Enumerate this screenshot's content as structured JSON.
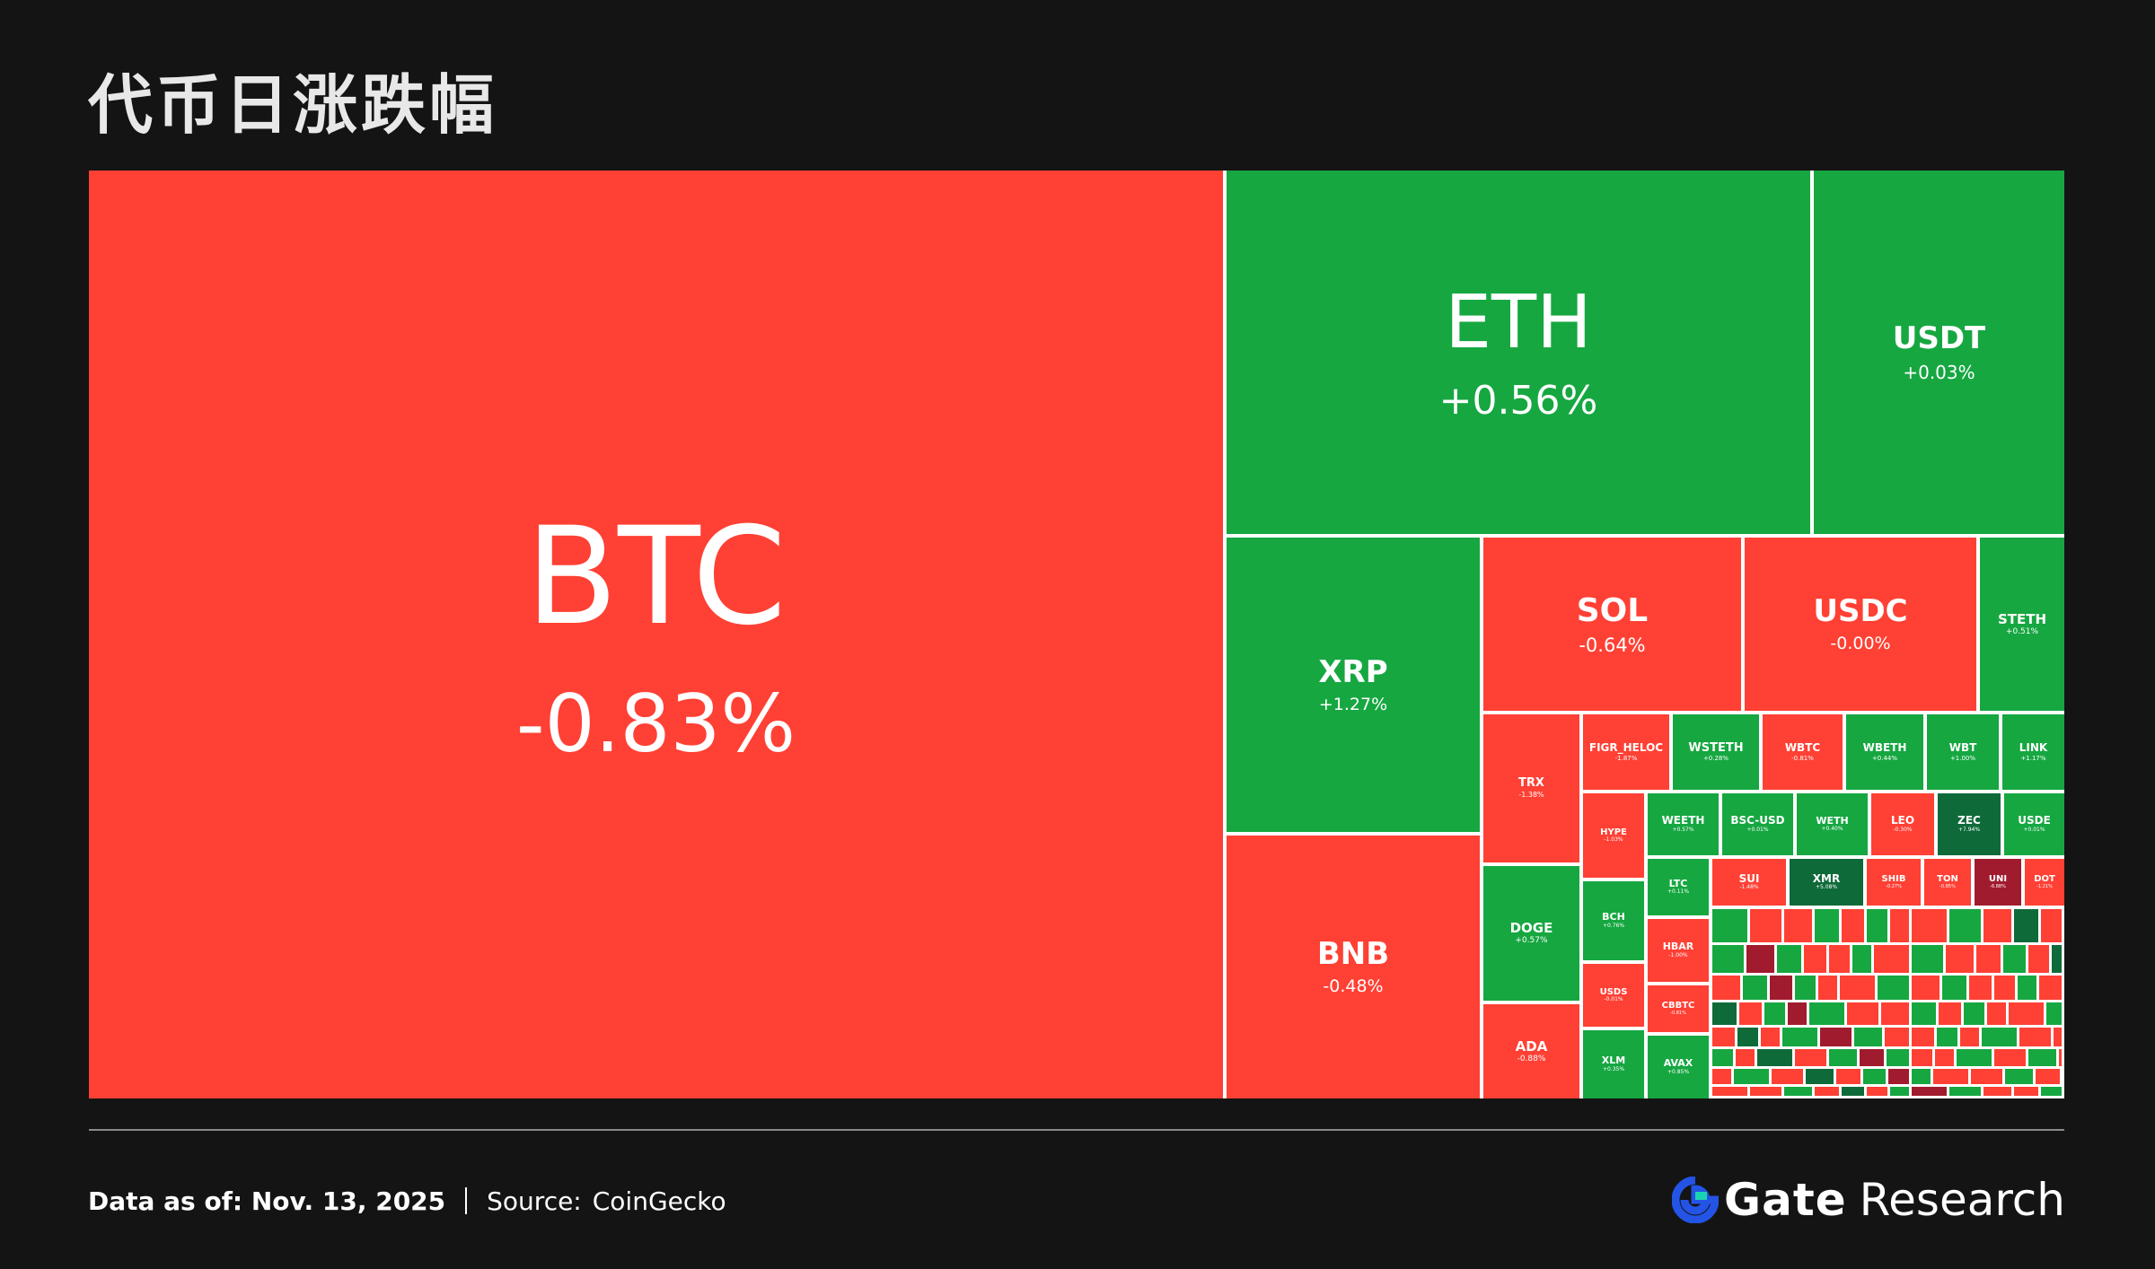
{
  "page": {
    "title": "代币日涨跌幅",
    "footer": {
      "date_text": "Data as of: Nov. 13, 2025",
      "source_label": "Source:",
      "source_value": "CoinGecko"
    },
    "brand": {
      "name": "Gate",
      "suffix": "Research"
    }
  },
  "colors": {
    "down": "#ff4034",
    "up": "#16a741",
    "strong_up": "#0f6a3a",
    "strong_down": "#a11b2e",
    "background": "#141414"
  },
  "chart_data": {
    "type": "treemap",
    "title": "代币日涨跌幅",
    "unit": "%",
    "tiles": [
      {
        "symbol": "BTC",
        "change": "-0.83%",
        "value": -0.83
      },
      {
        "symbol": "ETH",
        "change": "+0.56%",
        "value": 0.56
      },
      {
        "symbol": "USDT",
        "change": "+0.03%",
        "value": 0.03
      },
      {
        "symbol": "XRP",
        "change": "+1.27%",
        "value": 1.27
      },
      {
        "symbol": "SOL",
        "change": "-0.64%",
        "value": -0.64
      },
      {
        "symbol": "USDC",
        "change": "-0.00%",
        "value": -0.0
      },
      {
        "symbol": "STETH",
        "change": "+0.51%",
        "value": 0.51
      },
      {
        "symbol": "BNB",
        "change": "-0.48%",
        "value": -0.48
      },
      {
        "symbol": "TRX",
        "change": "-1.38%",
        "value": -1.38
      },
      {
        "symbol": "FIGR_HELOC",
        "change": "-1.87%",
        "value": -1.87
      },
      {
        "symbol": "WSTETH",
        "change": "+0.28%",
        "value": 0.28
      },
      {
        "symbol": "WBTC",
        "change": "-0.81%",
        "value": -0.81
      },
      {
        "symbol": "WBETH",
        "change": "+0.44%",
        "value": 0.44
      },
      {
        "symbol": "WBT",
        "change": "+1.00%",
        "value": 1.0
      },
      {
        "symbol": "LINK",
        "change": "+1.17%",
        "value": 1.17
      },
      {
        "symbol": "HYPE",
        "change": "-1.03%",
        "value": -1.03
      },
      {
        "symbol": "WEETH",
        "change": "+0.57%",
        "value": 0.57
      },
      {
        "symbol": "BSC-USD",
        "change": "+0.01%",
        "value": 0.01
      },
      {
        "symbol": "WETH",
        "change": "+0.40%",
        "value": 0.4
      },
      {
        "symbol": "LEO",
        "change": "-0.30%",
        "value": -0.3
      },
      {
        "symbol": "ZEC",
        "change": "+7.94%",
        "value": 7.94
      },
      {
        "symbol": "USDE",
        "change": "+0.01%",
        "value": 0.01
      },
      {
        "symbol": "DOGE",
        "change": "+0.57%",
        "value": 0.57
      },
      {
        "symbol": "ADA",
        "change": "-0.88%",
        "value": -0.88
      },
      {
        "symbol": "BCH",
        "change": "+0.76%",
        "value": 0.76
      },
      {
        "symbol": "USDS",
        "change": "-0.01%",
        "value": -0.01
      },
      {
        "symbol": "XLM",
        "change": "+0.35%",
        "value": 0.35
      },
      {
        "symbol": "LTC",
        "change": "+0.11%",
        "value": 0.11
      },
      {
        "symbol": "HBAR",
        "change": "-1.00%",
        "value": -1.0
      },
      {
        "symbol": "CBBTC",
        "change": "-0.81%",
        "value": -0.81
      },
      {
        "symbol": "AVAX",
        "change": "+0.85%",
        "value": 0.85
      },
      {
        "symbol": "SUI",
        "change": "-1.48%",
        "value": -1.48
      },
      {
        "symbol": "XMR",
        "change": "+5.08%",
        "value": 5.08
      },
      {
        "symbol": "SHIB",
        "change": "-0.27%",
        "value": -0.27
      },
      {
        "symbol": "TON",
        "change": "-0.85%",
        "value": -0.85
      },
      {
        "symbol": "UNI",
        "change": "-6.88%",
        "value": -6.88
      },
      {
        "symbol": "DOT",
        "change": "-1.21%",
        "value": -1.21
      }
    ]
  }
}
